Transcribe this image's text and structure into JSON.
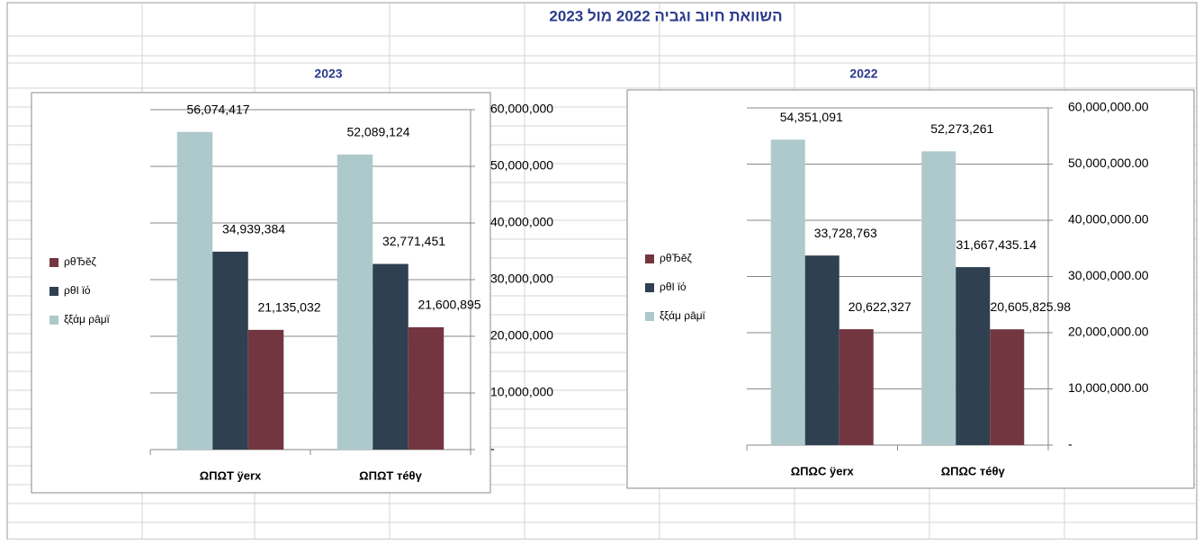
{
  "header": {
    "title": "השוואת חיוב וגביה 2022 מול 2023"
  },
  "chart_data": [
    {
      "type": "bar",
      "title": "2023",
      "categories": [
        "ΩΠΩΤ ÿerx",
        "ΩΠΩΤ ᴛéθγ"
      ],
      "series": [
        {
          "name": "ξξάμ ρâμϊ",
          "color": "#aec9cb",
          "values": [
            56074417,
            52089124
          ],
          "value_labels": [
            "56,074,417",
            "52,089,124"
          ]
        },
        {
          "name": "ρθΙ ϊό",
          "color": "#2f4050",
          "values": [
            34939384,
            32771451
          ],
          "value_labels": [
            "34,939,384",
            "32,771,451"
          ]
        },
        {
          "name": "ρθЂĕζ",
          "color": "#733641",
          "values": [
            21135032,
            21600895
          ],
          "value_labels": [
            "21,135,032",
            "21,600,895"
          ]
        }
      ],
      "ylim": [
        0,
        60000000
      ],
      "yticks": [
        {
          "value": 0,
          "label": "-"
        },
        {
          "value": 10000000,
          "label": "10,000,000"
        },
        {
          "value": 20000000,
          "label": "20,000,000"
        },
        {
          "value": 30000000,
          "label": "30,000,000"
        },
        {
          "value": 40000000,
          "label": "40,000,000"
        },
        {
          "value": 50000000,
          "label": "50,000,000"
        },
        {
          "value": 60000000,
          "label": "60,000,000"
        }
      ],
      "grid": true,
      "legend": "left"
    },
    {
      "type": "bar",
      "title": "2022",
      "categories": [
        "ΩΠΩC ÿerx",
        "ΩΠΩC ᴛéθγ"
      ],
      "series": [
        {
          "name": "ξξάμ ρâμϊ",
          "color": "#aec9cb",
          "values": [
            54351091,
            52273261
          ],
          "value_labels": [
            "54,351,091",
            "52,273,261"
          ]
        },
        {
          "name": "ρθΙ ϊό",
          "color": "#2f4050",
          "values": [
            33728763,
            31667435.14
          ],
          "value_labels": [
            "33,728,763",
            "31,667,435.14"
          ]
        },
        {
          "name": "ρθЂĕζ",
          "color": "#733641",
          "values": [
            20622327,
            20605825.98
          ],
          "value_labels": [
            "20,622,327",
            "20,605,825.98"
          ]
        }
      ],
      "ylim": [
        0,
        60000000
      ],
      "yticks": [
        {
          "value": 0,
          "label": "-"
        },
        {
          "value": 10000000,
          "label": "10,000,000.00"
        },
        {
          "value": 20000000,
          "label": "20,000,000.00"
        },
        {
          "value": 30000000,
          "label": "30,000,000.00"
        },
        {
          "value": 40000000,
          "label": "40,000,000.00"
        },
        {
          "value": 50000000,
          "label": "50,000,000.00"
        },
        {
          "value": 60000000,
          "label": "60,000,000.00"
        }
      ],
      "grid": true,
      "legend": "left"
    }
  ]
}
